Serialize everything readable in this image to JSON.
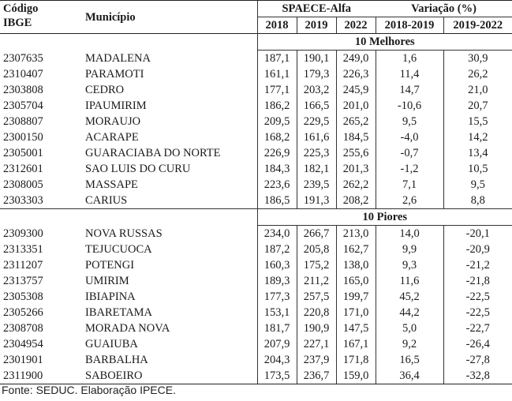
{
  "header": {
    "code_line1": "Código",
    "code_line2": "IBGE",
    "municipality": "Município",
    "group_spaece": "SPAECE-Alfa",
    "group_variation": "Variação (%)",
    "years": [
      "2018",
      "2019",
      "2022"
    ],
    "periods": [
      "2018-2019",
      "2019-2022"
    ]
  },
  "sections": [
    {
      "label": "10 Melhores",
      "rows": [
        {
          "code": "2307635",
          "name": "MADALENA",
          "y2018": "187,1",
          "y2019": "190,1",
          "y2022": "249,0",
          "v1819": "1,6",
          "v1922": "30,9"
        },
        {
          "code": "2310407",
          "name": "PARAMOTI",
          "y2018": "161,1",
          "y2019": "179,3",
          "y2022": "226,3",
          "v1819": "11,4",
          "v1922": "26,2"
        },
        {
          "code": "2303808",
          "name": "CEDRO",
          "y2018": "177,1",
          "y2019": "203,2",
          "y2022": "245,9",
          "v1819": "14,7",
          "v1922": "21,0"
        },
        {
          "code": "2305704",
          "name": "IPAUMIRIM",
          "y2018": "186,2",
          "y2019": "166,5",
          "y2022": "201,0",
          "v1819": "-10,6",
          "v1922": "20,7"
        },
        {
          "code": "2308807",
          "name": "MORAUJO",
          "y2018": "209,5",
          "y2019": "229,5",
          "y2022": "265,2",
          "v1819": "9,5",
          "v1922": "15,5"
        },
        {
          "code": "2300150",
          "name": "ACARAPE",
          "y2018": "168,2",
          "y2019": "161,6",
          "y2022": "184,5",
          "v1819": "-4,0",
          "v1922": "14,2"
        },
        {
          "code": "2305001",
          "name": "GUARACIABA DO NORTE",
          "y2018": "226,9",
          "y2019": "225,3",
          "y2022": "255,6",
          "v1819": "-0,7",
          "v1922": "13,4"
        },
        {
          "code": "2312601",
          "name": "SAO LUIS DO CURU",
          "y2018": "184,3",
          "y2019": "182,1",
          "y2022": "201,3",
          "v1819": "-1,2",
          "v1922": "10,5"
        },
        {
          "code": "2308005",
          "name": "MASSAPE",
          "y2018": "223,6",
          "y2019": "239,5",
          "y2022": "262,2",
          "v1819": "7,1",
          "v1922": "9,5"
        },
        {
          "code": "2303303",
          "name": "CARIUS",
          "y2018": "186,5",
          "y2019": "191,3",
          "y2022": "208,2",
          "v1819": "2,6",
          "v1922": "8,8"
        }
      ]
    },
    {
      "label": "10 Piores",
      "rows": [
        {
          "code": "2309300",
          "name": "NOVA RUSSAS",
          "y2018": "234,0",
          "y2019": "266,7",
          "y2022": "213,0",
          "v1819": "14,0",
          "v1922": "-20,1"
        },
        {
          "code": "2313351",
          "name": "TEJUCUOCA",
          "y2018": "187,2",
          "y2019": "205,8",
          "y2022": "162,7",
          "v1819": "9,9",
          "v1922": "-20,9"
        },
        {
          "code": "2311207",
          "name": "POTENGI",
          "y2018": "160,3",
          "y2019": "175,2",
          "y2022": "138,0",
          "v1819": "9,3",
          "v1922": "-21,2"
        },
        {
          "code": "2313757",
          "name": "UMIRIM",
          "y2018": "189,3",
          "y2019": "211,2",
          "y2022": "165,0",
          "v1819": "11,6",
          "v1922": "-21,8"
        },
        {
          "code": "2305308",
          "name": "IBIAPINA",
          "y2018": "177,3",
          "y2019": "257,5",
          "y2022": "199,7",
          "v1819": "45,2",
          "v1922": "-22,5"
        },
        {
          "code": "2305266",
          "name": "IBARETAMA",
          "y2018": "153,1",
          "y2019": "220,8",
          "y2022": "171,0",
          "v1819": "44,2",
          "v1922": "-22,5"
        },
        {
          "code": "2308708",
          "name": "MORADA NOVA",
          "y2018": "181,7",
          "y2019": "190,9",
          "y2022": "147,5",
          "v1819": "5,0",
          "v1922": "-22,7"
        },
        {
          "code": "2304954",
          "name": "GUAIUBA",
          "y2018": "207,9",
          "y2019": "227,1",
          "y2022": "167,1",
          "v1819": "9,2",
          "v1922": "-26,4"
        },
        {
          "code": "2301901",
          "name": "BARBALHA",
          "y2018": "204,3",
          "y2019": "237,9",
          "y2022": "171,8",
          "v1819": "16,5",
          "v1922": "-27,8"
        },
        {
          "code": "2311900",
          "name": "SABOEIRO",
          "y2018": "173,5",
          "y2019": "236,7",
          "y2022": "159,0",
          "v1819": "36,4",
          "v1922": "-32,8"
        }
      ]
    }
  ],
  "footer": {
    "source": "Fonte: SEDUC. Elaboração IPECE."
  }
}
